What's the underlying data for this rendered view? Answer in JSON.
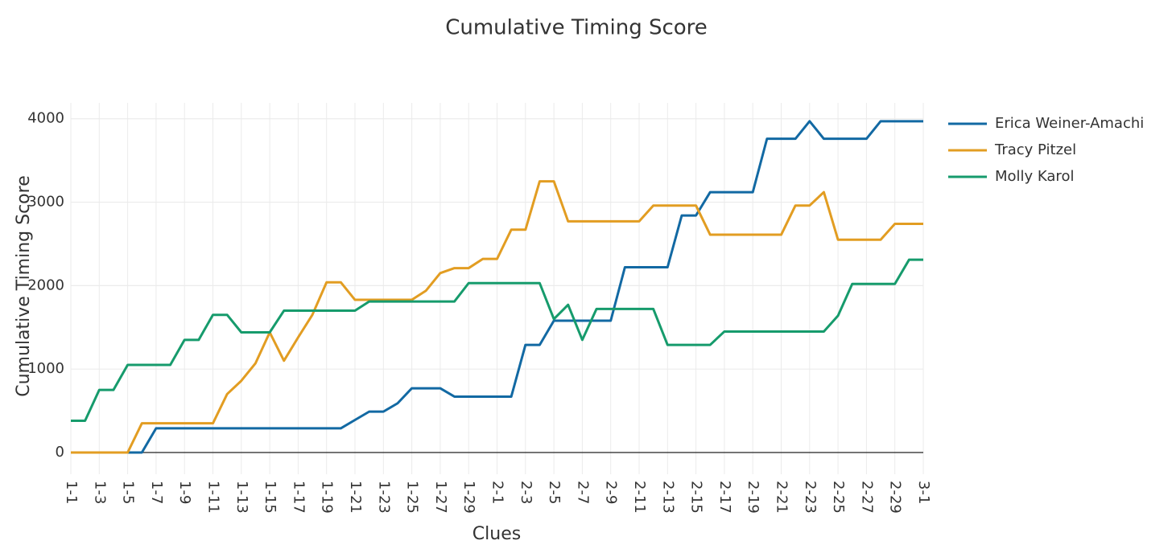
{
  "chart_data": {
    "type": "line",
    "title": "Cumulative Timing Score",
    "x_label": "Clues",
    "y_label": "Cumulative Timing Score",
    "categories": [
      "1-1",
      null,
      "1-3",
      null,
      "1-5",
      null,
      "1-7",
      null,
      "1-9",
      null,
      "1-11",
      null,
      "1-13",
      null,
      "1-15",
      null,
      "1-17",
      null,
      "1-19",
      null,
      "1-21",
      null,
      "1-23",
      null,
      "1-25",
      null,
      "1-27",
      null,
      "1-29",
      null,
      "2-1",
      null,
      "2-3",
      null,
      "2-5",
      null,
      "2-7",
      null,
      "2-9",
      null,
      "2-11",
      null,
      "2-13",
      null,
      "2-15",
      null,
      "2-17",
      null,
      "2-19",
      null,
      "2-21",
      null,
      "2-23",
      null,
      "2-25",
      null,
      "2-27",
      null,
      "2-29",
      null,
      "3-1"
    ],
    "series": [
      {
        "name": "Erica Weiner-Amachi",
        "color": "#1269a3",
        "values": [
          0,
          0,
          0,
          0,
          0,
          0,
          290,
          290,
          290,
          290,
          290,
          290,
          290,
          290,
          290,
          290,
          290,
          290,
          290,
          290,
          390,
          490,
          490,
          590,
          770,
          770,
          770,
          670,
          670,
          670,
          670,
          670,
          1290,
          1290,
          1580,
          1580,
          1580,
          1580,
          1580,
          2220,
          2220,
          2220,
          2220,
          2840,
          2840,
          3120,
          3120,
          3120,
          3120,
          3760,
          3760,
          3760,
          3970,
          3760,
          3760,
          3760,
          3760,
          3970,
          3970,
          3970,
          3970
        ]
      },
      {
        "name": "Tracy Pitzel",
        "color": "#e29d22",
        "values": [
          0,
          0,
          0,
          0,
          0,
          350,
          350,
          350,
          350,
          350,
          350,
          700,
          860,
          1070,
          1440,
          1100,
          1380,
          1650,
          2040,
          2040,
          1830,
          1830,
          1830,
          1830,
          1830,
          1940,
          2150,
          2210,
          2210,
          2320,
          2320,
          2670,
          2670,
          3250,
          3250,
          2770,
          2770,
          2770,
          2770,
          2770,
          2770,
          2960,
          2960,
          2960,
          2960,
          2610,
          2610,
          2610,
          2610,
          2610,
          2610,
          2960,
          2960,
          3120,
          2550,
          2550,
          2550,
          2550,
          2740,
          2740,
          2740
        ]
      },
      {
        "name": "Molly Karol",
        "color": "#169b6c",
        "values": [
          380,
          380,
          750,
          750,
          1050,
          1050,
          1050,
          1050,
          1350,
          1350,
          1650,
          1650,
          1440,
          1440,
          1440,
          1700,
          1700,
          1700,
          1700,
          1700,
          1700,
          1810,
          1810,
          1810,
          1810,
          1810,
          1810,
          1810,
          2030,
          2030,
          2030,
          2030,
          2030,
          2030,
          1600,
          1770,
          1350,
          1720,
          1720,
          1720,
          1720,
          1720,
          1290,
          1290,
          1290,
          1290,
          1450,
          1450,
          1450,
          1450,
          1450,
          1450,
          1450,
          1450,
          1640,
          2020,
          2020,
          2020,
          2020,
          2310,
          2310
        ]
      }
    ],
    "ylim": [
      -260,
      4190
    ],
    "yticks": [
      0,
      1000,
      2000,
      3000,
      4000
    ],
    "grid": true,
    "legend": "right"
  }
}
